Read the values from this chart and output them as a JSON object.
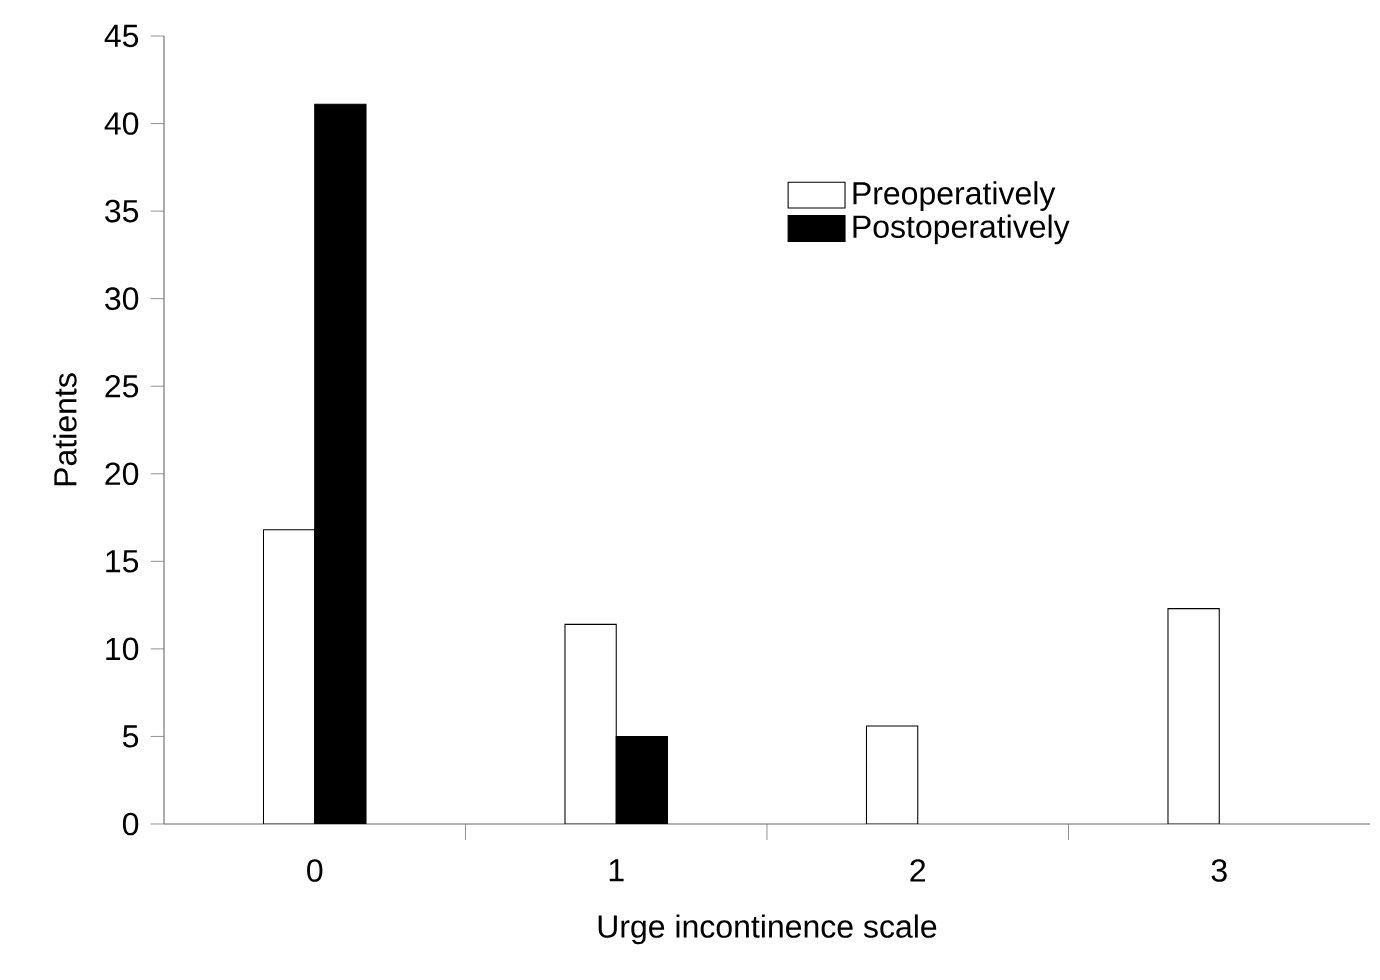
{
  "chart_data": {
    "type": "bar",
    "xlabel": "Urge incontinence scale",
    "ylabel": "Patients",
    "categories": [
      "0",
      "1",
      "2",
      "3"
    ],
    "series": [
      {
        "name": "Preoperatively",
        "color": "#ffffff",
        "values": [
          16.8,
          11.4,
          5.6,
          12.3
        ]
      },
      {
        "name": "Postoperatively",
        "color": "#000000",
        "values": [
          41.1,
          5,
          null,
          null
        ]
      }
    ],
    "ylim": [
      0,
      45
    ],
    "yticks": [
      0,
      5,
      10,
      15,
      20,
      25,
      30,
      35,
      40,
      45
    ],
    "grid": false,
    "legend": "top right"
  }
}
